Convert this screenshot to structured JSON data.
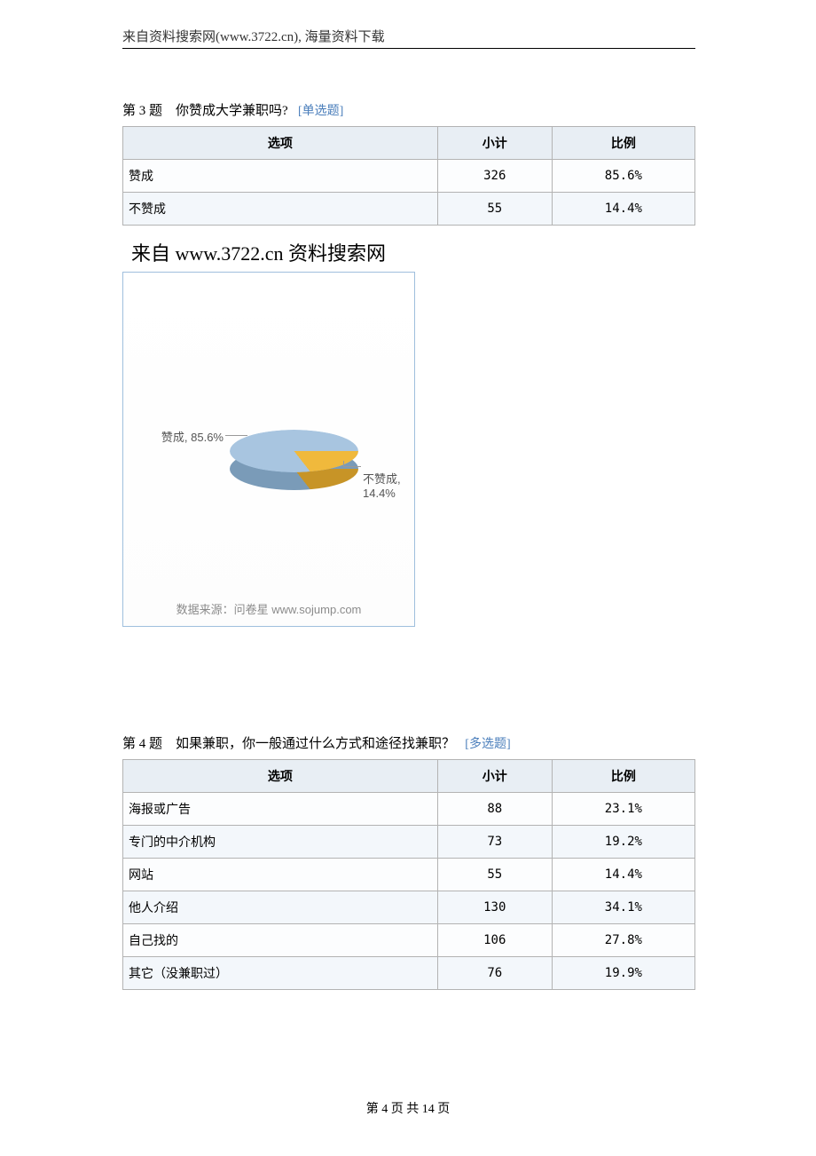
{
  "header": {
    "text": "来自资料搜索网(www.3722.cn), 海量资料下载"
  },
  "q3": {
    "prefix": "第 3 题",
    "text": "你赞成大学兼职吗?",
    "tag": "[单选题]",
    "table": {
      "headers": {
        "opt": "选项",
        "count": "小计",
        "ratio": "比例"
      },
      "rows": [
        {
          "opt": "赞成",
          "count": "326",
          "ratio": "85.6%"
        },
        {
          "opt": "不赞成",
          "count": "55",
          "ratio": "14.4%"
        }
      ]
    }
  },
  "watermark": "来自  www.3722.cn 资料搜索网",
  "chart": {
    "type": "pie-3d",
    "source_text": "数据来源：问卷星 www.sojump.com",
    "slices": [
      {
        "label": "赞成, 85.6%",
        "value": 85.6,
        "color": "#a8c5e0",
        "color_dark": "#7a9bb8"
      },
      {
        "label": "不赞成, 14.4%",
        "value": 14.4,
        "color": "#f0b93c",
        "color_dark": "#c79427"
      }
    ],
    "border_color": "#9fbfdd",
    "label_color": "#555555",
    "label_fontsize": 13,
    "background": "#ffffff"
  },
  "q4": {
    "prefix": "第 4 题",
    "text": "如果兼职，你一般通过什么方式和途径找兼职？",
    "tag": "[多选题]",
    "table": {
      "headers": {
        "opt": "选项",
        "count": "小计",
        "ratio": "比例"
      },
      "rows": [
        {
          "opt": "海报或广告",
          "count": "88",
          "ratio": "23.1%"
        },
        {
          "opt": "专门的中介机构",
          "count": "73",
          "ratio": "19.2%"
        },
        {
          "opt": "网站",
          "count": "55",
          "ratio": "14.4%"
        },
        {
          "opt": "他人介绍",
          "count": "130",
          "ratio": "34.1%"
        },
        {
          "opt": "自己找的",
          "count": "106",
          "ratio": "27.8%"
        },
        {
          "opt": "其它（没兼职过）",
          "count": "76",
          "ratio": "19.9%"
        }
      ]
    }
  },
  "footer": {
    "text": "第 4 页 共 14 页"
  }
}
